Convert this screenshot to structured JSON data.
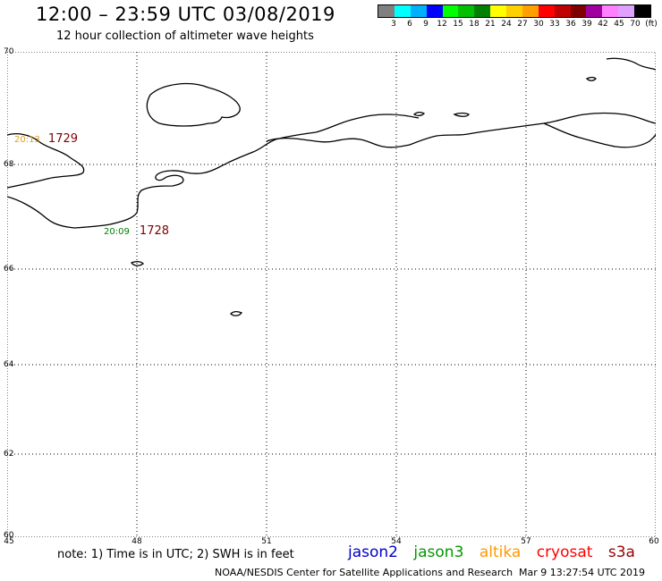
{
  "header": {
    "title": "12:00 – 23:59 UTC 03/08/2019",
    "subtitle": "12 hour collection of altimeter wave heights"
  },
  "color_scale": {
    "colors": [
      "#808080",
      "#00ffff",
      "#00b0ff",
      "#0000ff",
      "#00ff00",
      "#00c000",
      "#008000",
      "#ffff00",
      "#ffd000",
      "#ffa000",
      "#ff0000",
      "#c00000",
      "#800000",
      "#a000a0",
      "#ff80ff",
      "#e0a0ff",
      "#000000"
    ],
    "labels": [
      "3",
      "6",
      "9",
      "12",
      "15",
      "18",
      "21",
      "24",
      "27",
      "30",
      "33",
      "36",
      "39",
      "42",
      "45",
      "70",
      "(ft)"
    ]
  },
  "map": {
    "lat_labels": [
      "70",
      "68",
      "66",
      "64",
      "62",
      "60"
    ],
    "lon_labels": [
      "45",
      "48",
      "51",
      "54",
      "57",
      "60"
    ],
    "tracks": [
      {
        "time": "20:13",
        "time_color": "#e0a020",
        "id": "1729",
        "id_color": "#800000"
      },
      {
        "time": "20:09",
        "time_color": "#008000",
        "id": "1728",
        "id_color": "#800000"
      }
    ]
  },
  "footer": {
    "note": "note: 1) Time is in UTC; 2) SWH is in feet",
    "satellites": [
      {
        "name": "jason2",
        "color": "#0000cc"
      },
      {
        "name": "jason3",
        "color": "#009900"
      },
      {
        "name": "altika",
        "color": "#ff9900"
      },
      {
        "name": "cryosat",
        "color": "#ff0000"
      },
      {
        "name": "s3a",
        "color": "#990000"
      }
    ],
    "credit": "NOAA/NESDIS Center for Satellite Applications and Research",
    "timestamp": "Mar  9 13:27:54 UTC 2019"
  }
}
